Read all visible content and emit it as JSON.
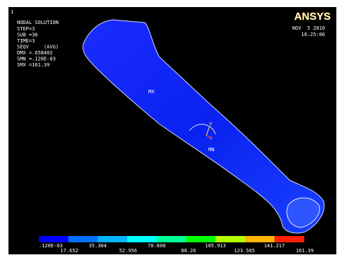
{
  "window_number": "1",
  "info": {
    "title": "NODAL SOLUTION",
    "lines": [
      "STEP=3",
      "SUB =36",
      "TIME=3",
      "SEQV     (AVG)",
      "DMX =.658402",
      "SMN =.120E-03",
      "SMX =161.39"
    ]
  },
  "brand": "ANSYS",
  "date": "NOV  5 2010",
  "time": "16:25:06",
  "markers": {
    "max": "MX",
    "min": "MN",
    "axis_y": "Y",
    "axis_x": "X"
  },
  "legend": {
    "labels": [
      ".120E-03",
      "17.652",
      "35.304",
      "52.956",
      "70.608",
      "88.26",
      "105.913",
      "123.565",
      "141.217",
      "161.39"
    ]
  }
}
